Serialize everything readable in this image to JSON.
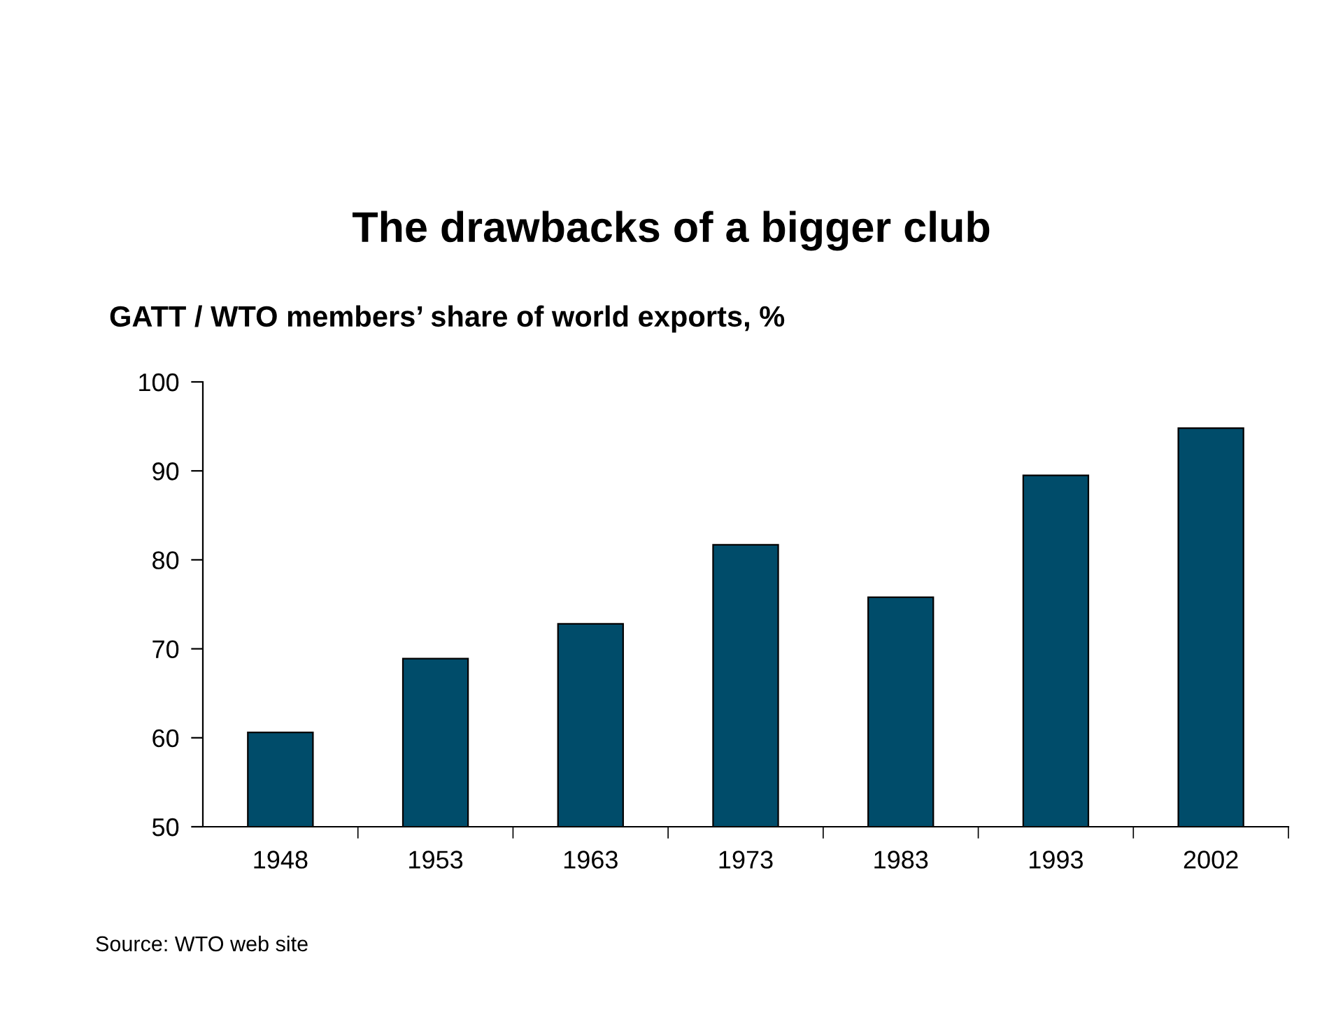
{
  "chart_data": {
    "type": "bar",
    "title": "The drawbacks of a bigger club",
    "subtitle": "GATT / WTO members’ share of world exports, %",
    "categories": [
      "1948",
      "1953",
      "1963",
      "1973",
      "1983",
      "1993",
      "2002"
    ],
    "values": [
      60.6,
      68.9,
      72.8,
      81.7,
      75.8,
      89.5,
      94.8
    ],
    "color": "#004c6a",
    "ylim": [
      50,
      100
    ],
    "yticks": [
      50,
      60,
      70,
      80,
      90,
      100
    ],
    "grid": false,
    "legend": false,
    "annotations": [
      "Source: WTO web site"
    ]
  }
}
